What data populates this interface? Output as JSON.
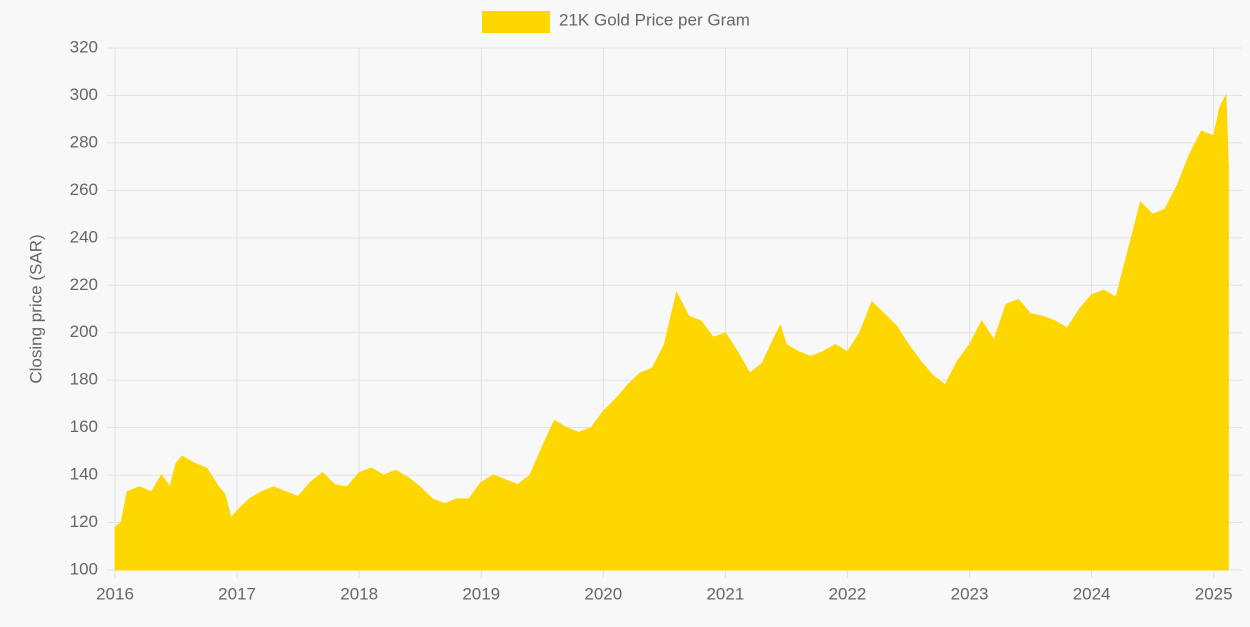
{
  "chart_data": {
    "type": "area",
    "y_label": "Closing price (SAR)",
    "x": [
      2016.0,
      2016.05,
      2016.1,
      2016.2,
      2016.3,
      2016.38,
      2016.45,
      2016.5,
      2016.55,
      2016.65,
      2016.75,
      2016.85,
      2016.9,
      2016.95,
      2017.0,
      2017.1,
      2017.2,
      2017.3,
      2017.4,
      2017.5,
      2017.6,
      2017.7,
      2017.8,
      2017.9,
      2018.0,
      2018.1,
      2018.2,
      2018.3,
      2018.4,
      2018.5,
      2018.6,
      2018.7,
      2018.8,
      2018.9,
      2019.0,
      2019.1,
      2019.2,
      2019.3,
      2019.4,
      2019.5,
      2019.6,
      2019.7,
      2019.8,
      2019.9,
      2020.0,
      2020.1,
      2020.2,
      2020.3,
      2020.4,
      2020.5,
      2020.6,
      2020.7,
      2020.8,
      2020.9,
      2021.0,
      2021.1,
      2021.2,
      2021.3,
      2021.4,
      2021.45,
      2021.5,
      2021.6,
      2021.7,
      2021.8,
      2021.9,
      2022.0,
      2022.1,
      2022.2,
      2022.3,
      2022.4,
      2022.5,
      2022.6,
      2022.7,
      2022.8,
      2022.9,
      2023.0,
      2023.1,
      2023.2,
      2023.3,
      2023.4,
      2023.5,
      2023.6,
      2023.7,
      2023.8,
      2023.9,
      2024.0,
      2024.1,
      2024.2,
      2024.3,
      2024.4,
      2024.5,
      2024.6,
      2024.7,
      2024.8,
      2024.9,
      2025.0,
      2025.05,
      2025.1,
      2025.12
    ],
    "series": [
      {
        "name": "21K Gold Price per Gram",
        "color": "#ffd700",
        "values": [
          118,
          120,
          133,
          135,
          133,
          140,
          135,
          145,
          148,
          145,
          143,
          135,
          132,
          122,
          125,
          130,
          133,
          135,
          133,
          131,
          137,
          141,
          136,
          135,
          141,
          143,
          140,
          142,
          139,
          135,
          130,
          128,
          130,
          130,
          137,
          140,
          138,
          136,
          140,
          152,
          163,
          160,
          158,
          160,
          167,
          172,
          178,
          183,
          185,
          195,
          217,
          207,
          205,
          198,
          200,
          192,
          183,
          187,
          198,
          203,
          195,
          192,
          190,
          192,
          195,
          192,
          200,
          213,
          208,
          203,
          195,
          188,
          182,
          178,
          188,
          195,
          205,
          197,
          212,
          214,
          208,
          207,
          205,
          202,
          210,
          216,
          218,
          215,
          235,
          255,
          250,
          252,
          262,
          275,
          285,
          283,
          295,
          300,
          270
        ]
      }
    ],
    "xlim": [
      2016,
      2025.15
    ],
    "xticks": [
      2016,
      2017,
      2018,
      2019,
      2020,
      2021,
      2022,
      2023,
      2024,
      2025
    ],
    "ylim": [
      100,
      320
    ],
    "yticks": [
      100,
      120,
      140,
      160,
      180,
      200,
      220,
      240,
      260,
      280,
      300,
      320
    ],
    "grid": true,
    "legend": "top"
  }
}
